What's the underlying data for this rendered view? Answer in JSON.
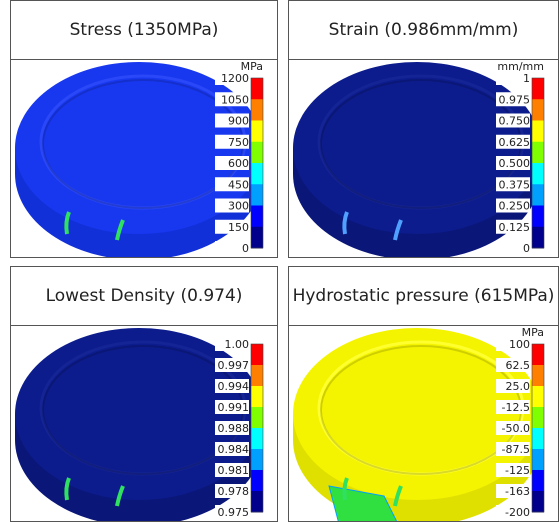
{
  "panels": [
    {
      "title": "Stress (1350MPa)",
      "unit": "MPa",
      "scale": [
        "1200",
        "1050",
        "900",
        "750",
        "600",
        "450",
        "300",
        "150",
        "0"
      ]
    },
    {
      "title": "Strain (0.986mm/mm)",
      "unit": "mm/mm",
      "scale": [
        "1",
        "0.975",
        "0.750",
        "0.625",
        "0.500",
        "0.375",
        "0.250",
        "0.125",
        "0"
      ]
    },
    {
      "title": "Lowest Density (0.974)",
      "scale": [
        "1.00",
        "0.997",
        "0.994",
        "0.991",
        "0.988",
        "0.984",
        "0.981",
        "0.978",
        "0.975"
      ]
    },
    {
      "title": "Hydrostatic pressure (615MPa)",
      "unit": "MPa",
      "scale": [
        "100",
        "62.5",
        "25.0",
        "-12.5",
        "-50.0",
        "-87.5",
        "-125",
        "-163",
        "-200"
      ]
    }
  ]
}
